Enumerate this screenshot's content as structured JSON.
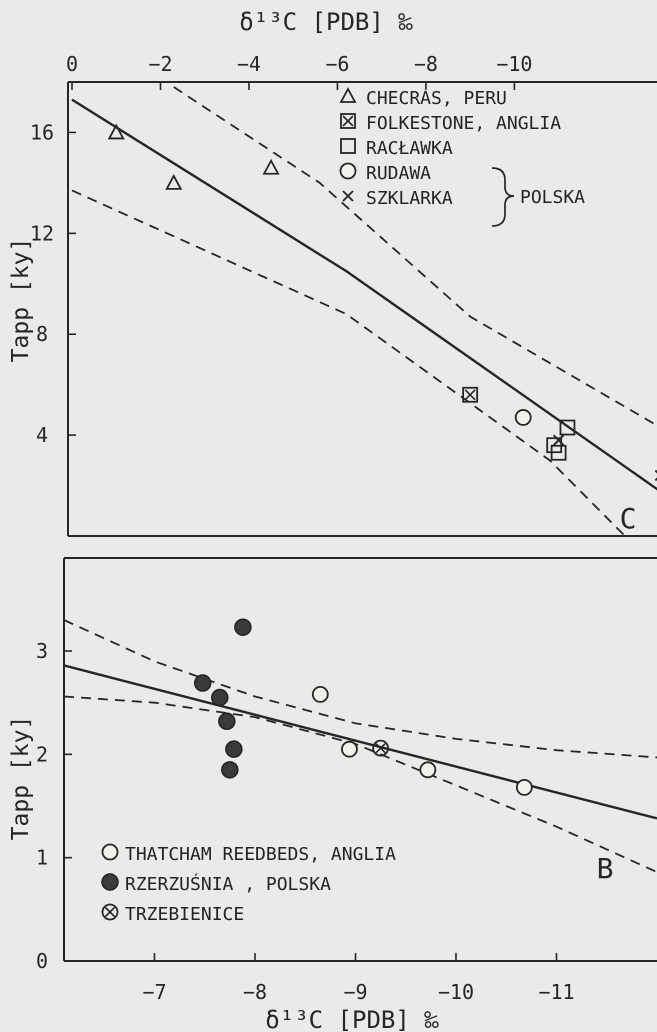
{
  "chart_data": [
    {
      "panel": "C",
      "type": "scatter",
      "top_axis_title": "δ¹³C [PDB] ‰",
      "left_axis_title": "Tapp [ky]",
      "top_ticks": [
        0,
        -2,
        -4,
        -6,
        -8,
        -10
      ],
      "y_ticks": [
        4,
        8,
        12,
        16
      ],
      "xlim": [
        0,
        -11.8
      ],
      "ylim": [
        0,
        18
      ],
      "panel_label": "C",
      "legend": [
        {
          "symbol": "triangle",
          "label": "CHECRAS, PERU"
        },
        {
          "symbol": "boxed-x",
          "label": "FOLKESTONE, ANGLIA"
        },
        {
          "symbol": "square",
          "label": "RACŁAWKA"
        },
        {
          "symbol": "circle",
          "label": "RUDAWA"
        },
        {
          "symbol": "cross",
          "label": "SZKLARKA"
        }
      ],
      "legend_group_label": "POLSKA",
      "series": [
        {
          "name": "CHECRAS, PERU",
          "symbol": "triangle",
          "points": [
            {
              "x": -1.0,
              "y": 16.0
            },
            {
              "x": -2.3,
              "y": 14.0
            },
            {
              "x": -4.5,
              "y": 14.6
            }
          ]
        },
        {
          "name": "FOLKESTONE, ANGLIA",
          "symbol": "boxed-x",
          "points": [
            {
              "x": -9.0,
              "y": 5.6
            }
          ]
        },
        {
          "name": "RACŁAWKA",
          "symbol": "square",
          "points": [
            {
              "x": -10.9,
              "y": 3.6
            },
            {
              "x": -11.0,
              "y": 3.3
            },
            {
              "x": -11.2,
              "y": 4.3
            }
          ]
        },
        {
          "name": "RUDAWA",
          "symbol": "circle",
          "points": [
            {
              "x": -10.2,
              "y": 4.7
            }
          ]
        },
        {
          "name": "SZKLARKA",
          "symbol": "cross",
          "points": [
            {
              "x": -11.0,
              "y": 3.8
            },
            {
              "x": -13.3,
              "y": 2.4
            }
          ]
        }
      ],
      "regression_line": [
        {
          "x": 0.0,
          "y": 17.3
        },
        {
          "x": -6.2,
          "y": 10.5
        },
        {
          "x": -13.6,
          "y": 1.4
        }
      ],
      "confidence_upper": [
        {
          "x": -2.3,
          "y": 17.8
        },
        {
          "x": -5.6,
          "y": 14.0
        },
        {
          "x": -9.0,
          "y": 8.7
        },
        {
          "x": -13.6,
          "y": 4.0
        }
      ],
      "confidence_lower": [
        {
          "x": 0.0,
          "y": 13.7
        },
        {
          "x": -6.2,
          "y": 8.8
        },
        {
          "x": -10.8,
          "y": 3.0
        },
        {
          "x": -12.5,
          "y": 0.0
        }
      ]
    },
    {
      "panel": "B",
      "type": "scatter",
      "bottom_axis_title": "δ¹³C [PDB] ‰",
      "left_axis_title": "Tapp [ky]",
      "x_ticks": [
        -7,
        -8,
        -9,
        -10,
        -11
      ],
      "y_ticks": [
        0,
        1,
        2,
        3
      ],
      "xlim": [
        -6.1,
        -12.0
      ],
      "ylim": [
        0,
        3.9
      ],
      "panel_label": "B",
      "legend": [
        {
          "symbol": "circle",
          "label": "THATCHAM REEDBEDS, ANGLIA"
        },
        {
          "symbol": "filled-circle",
          "label": "RZERZUŚNIA , POLSKA"
        },
        {
          "symbol": "circled-x",
          "label": "TRZEBIENICE"
        }
      ],
      "series": [
        {
          "name": "THATCHAM REEDBEDS, ANGLIA",
          "symbol": "circle",
          "points": [
            {
              "x": -8.65,
              "y": 2.58
            },
            {
              "x": -8.94,
              "y": 2.05
            },
            {
              "x": -9.72,
              "y": 1.85
            },
            {
              "x": -10.68,
              "y": 1.68
            }
          ]
        },
        {
          "name": "RZERZUŚNIA , POLSKA",
          "symbol": "filled-circle",
          "points": [
            {
              "x": -7.48,
              "y": 2.69
            },
            {
              "x": -7.65,
              "y": 2.55
            },
            {
              "x": -7.72,
              "y": 2.32
            },
            {
              "x": -7.79,
              "y": 2.05
            },
            {
              "x": -7.75,
              "y": 1.85
            },
            {
              "x": -7.88,
              "y": 3.23
            }
          ]
        },
        {
          "name": "TRZEBIENICE",
          "symbol": "circled-x",
          "points": [
            {
              "x": -9.25,
              "y": 2.06
            }
          ]
        }
      ],
      "regression_line": [
        {
          "x": -6.1,
          "y": 2.86
        },
        {
          "x": -12.0,
          "y": 1.38
        }
      ],
      "confidence_upper": [
        {
          "x": -6.1,
          "y": 3.3
        },
        {
          "x": -7.0,
          "y": 2.9
        },
        {
          "x": -8.0,
          "y": 2.56
        },
        {
          "x": -9.0,
          "y": 2.3
        },
        {
          "x": -10.0,
          "y": 2.15
        },
        {
          "x": -11.0,
          "y": 2.04
        },
        {
          "x": -12.0,
          "y": 1.97
        }
      ],
      "confidence_lower": [
        {
          "x": -6.1,
          "y": 2.56
        },
        {
          "x": -7.0,
          "y": 2.5
        },
        {
          "x": -8.0,
          "y": 2.36
        },
        {
          "x": -9.0,
          "y": 2.1
        },
        {
          "x": -10.0,
          "y": 1.7
        },
        {
          "x": -11.0,
          "y": 1.3
        },
        {
          "x": -12.0,
          "y": 0.86
        }
      ]
    }
  ]
}
